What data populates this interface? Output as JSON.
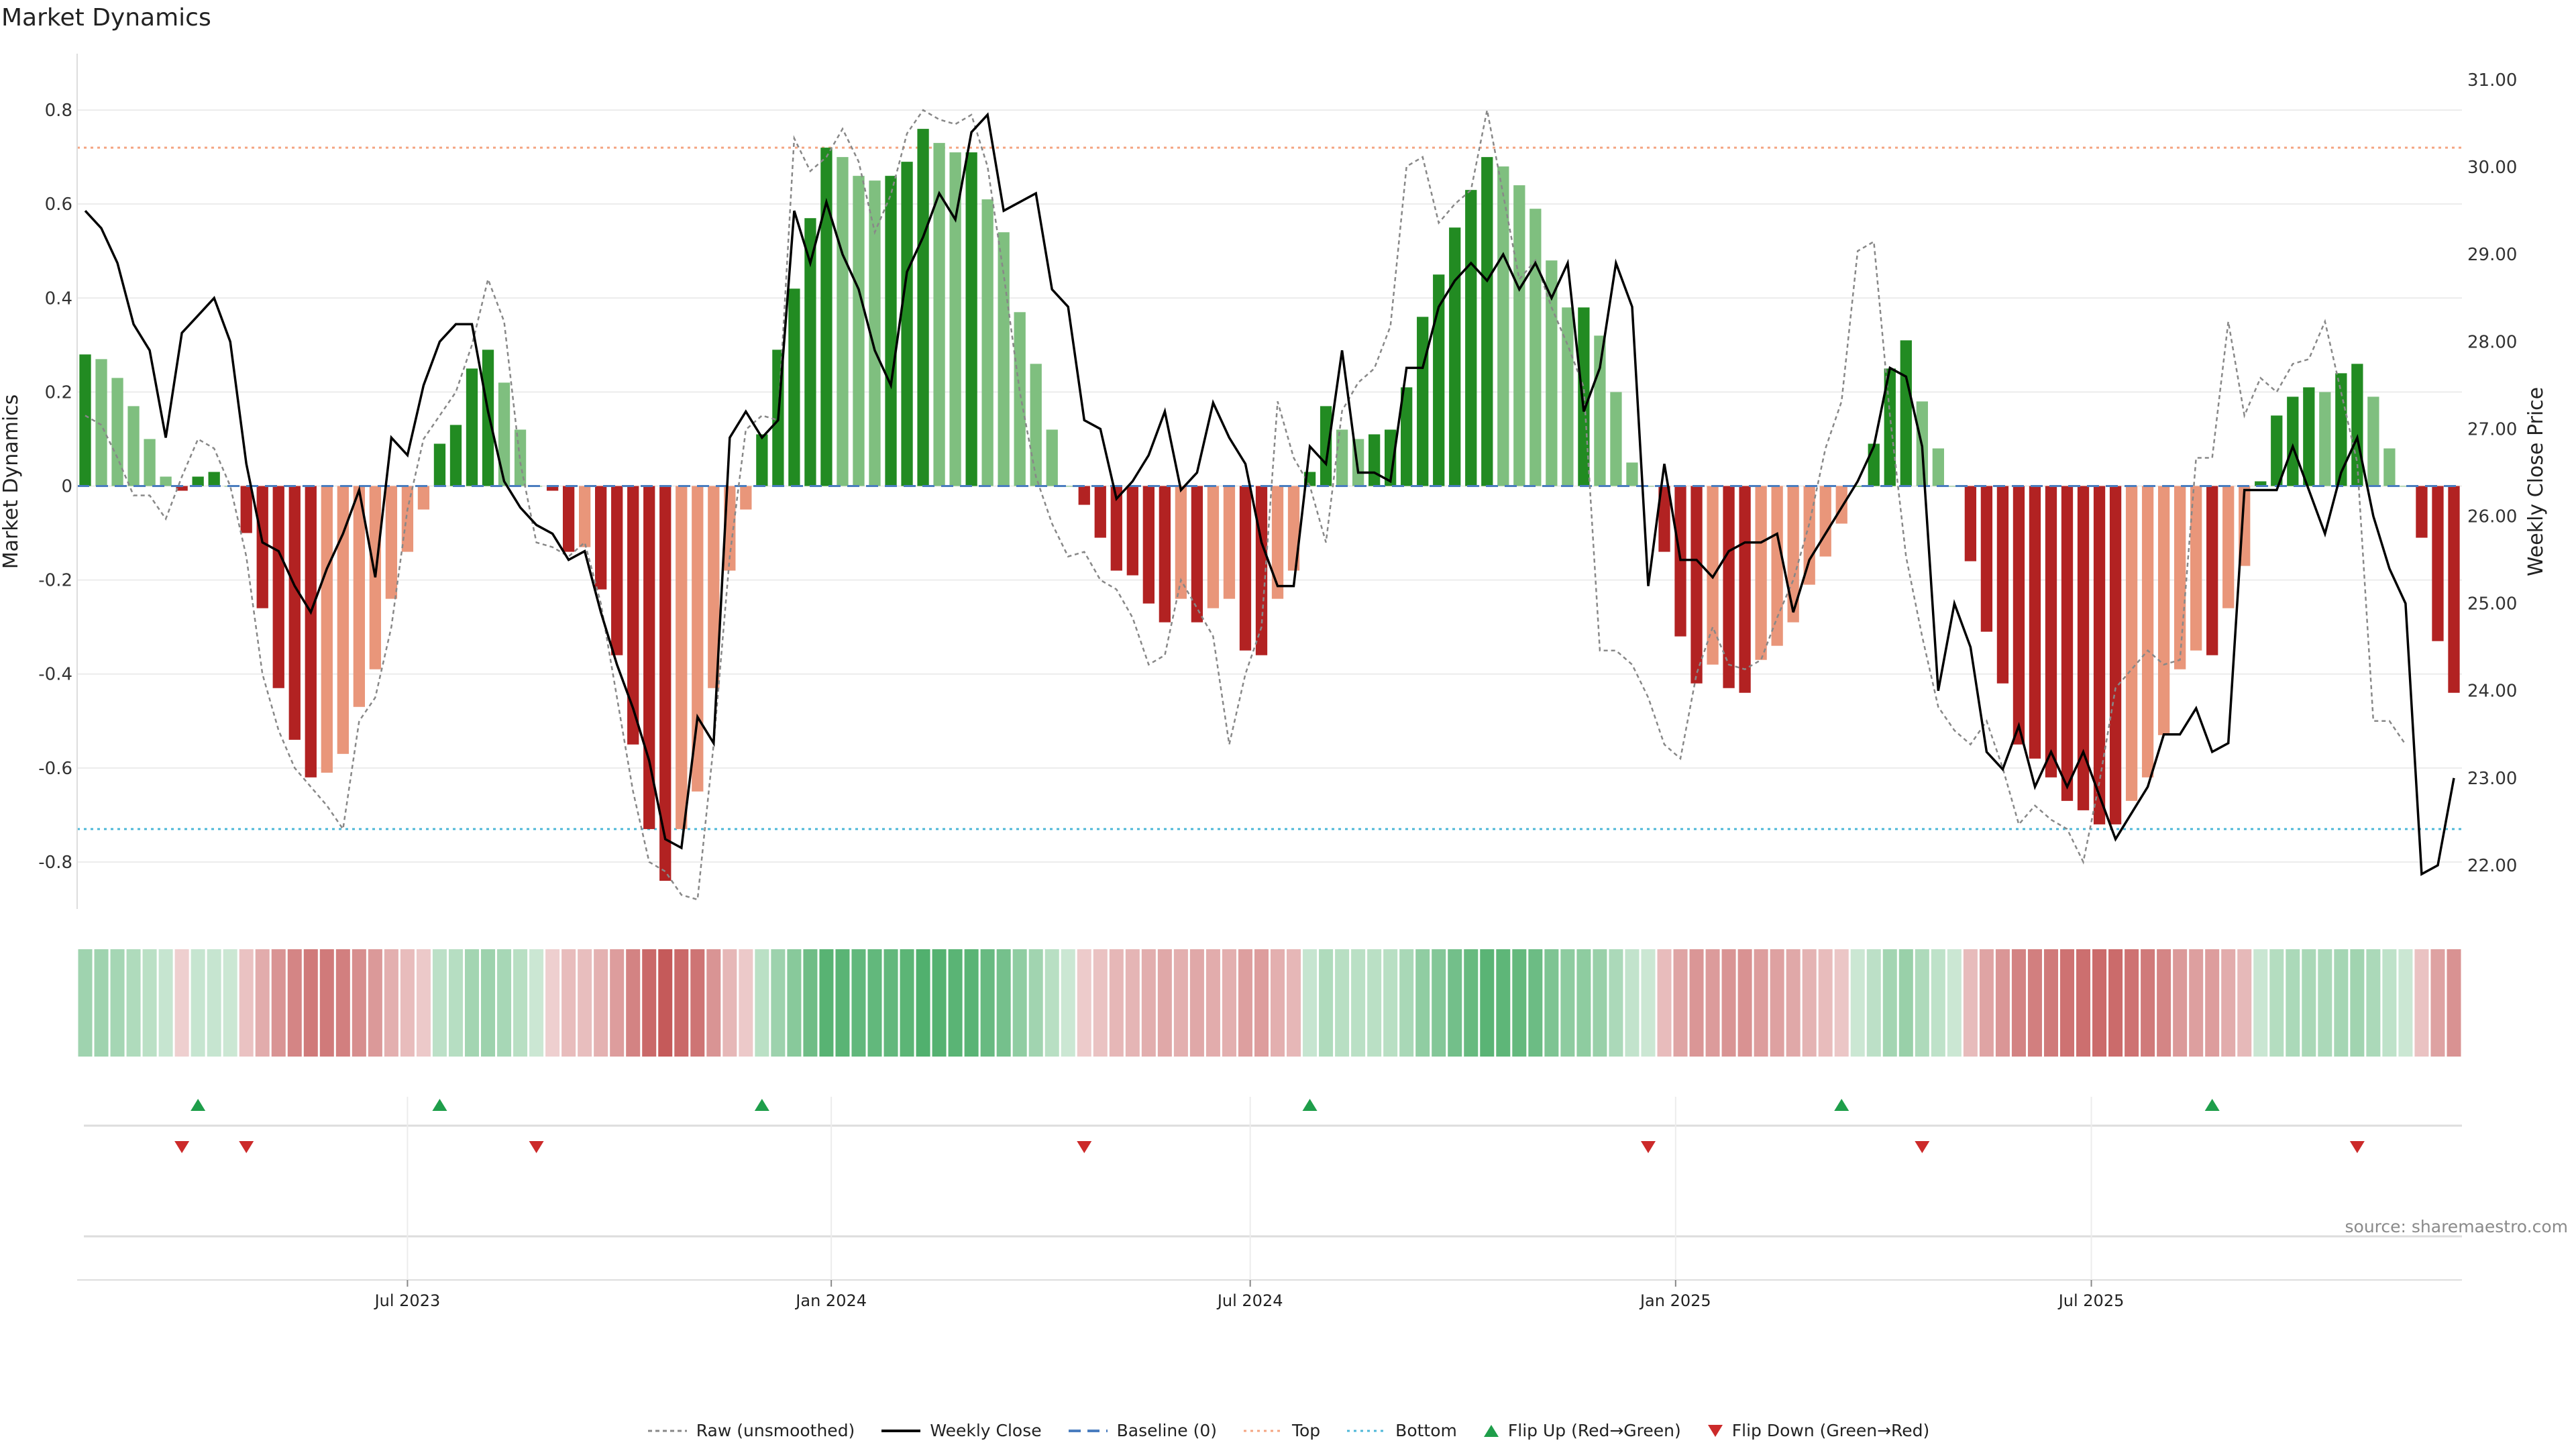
{
  "title": "Market Dynamics",
  "source": "source: sharemaestro.com",
  "colors": {
    "strong_green": "#228b22",
    "light_green": "#7fbf7f",
    "strong_red": "#b22222",
    "light_red": "#e9967a",
    "top_line": "#f4a582",
    "bottom_line": "#4fb8d8",
    "baseline": "#4a7dbf",
    "close_line": "#000000",
    "raw_line": "#888888",
    "flip_up": "#1e9e4a",
    "flip_down": "#cc2a2a"
  },
  "legend": [
    {
      "key": "raw",
      "label": "Raw (unsmoothed)"
    },
    {
      "key": "close",
      "label": "Weekly Close"
    },
    {
      "key": "baseline",
      "label": "Baseline (0)"
    },
    {
      "key": "top",
      "label": "Top"
    },
    {
      "key": "bottom",
      "label": "Bottom"
    },
    {
      "key": "flip_up",
      "label": "Flip Up (Red→Green)"
    },
    {
      "key": "flip_down",
      "label": "Flip Down (Green→Red)"
    }
  ],
  "chart_data": {
    "type": "bar",
    "title": "Market Dynamics",
    "ylabel": "Market Dynamics",
    "y2label": "Weekly Close Price",
    "ylim": [
      -0.9,
      0.92
    ],
    "y2lim": [
      21.5,
      31.3
    ],
    "yticks": [
      "0.8",
      "0.6",
      "0.4",
      "0.2",
      "0",
      "-0.2",
      "-0.4",
      "-0.6",
      "-0.8"
    ],
    "y2ticks": [
      "31.00",
      "30.00",
      "29.00",
      "28.00",
      "27.00",
      "26.00",
      "25.00",
      "24.00",
      "23.00",
      "22.00"
    ],
    "xticks": [
      {
        "label": "Jul 2023",
        "week": 20.5
      },
      {
        "label": "Jan 2024",
        "week": 46.8
      },
      {
        "label": "Jul 2024",
        "week": 72.8
      },
      {
        "label": "Jan 2025",
        "week": 99.2
      },
      {
        "label": "Jul 2025",
        "week": 125
      }
    ],
    "top_threshold": 0.72,
    "bottom_threshold": -0.73,
    "grid": true,
    "legend_position": "bottom-center",
    "series": [
      {
        "name": "Market Dynamics (smoothed)",
        "kind": "bar",
        "values": [
          0.28,
          0.27,
          0.23,
          0.17,
          0.1,
          0.02,
          -0.01,
          0.02,
          0.03,
          0,
          -0.1,
          -0.26,
          -0.43,
          -0.54,
          -0.62,
          -0.61,
          -0.57,
          -0.47,
          -0.39,
          -0.24,
          -0.14,
          -0.05,
          0.09,
          0.13,
          0.25,
          0.29,
          0.22,
          0.12,
          0,
          -0.01,
          -0.14,
          -0.13,
          -0.22,
          -0.36,
          -0.55,
          -0.73,
          -0.84,
          -0.73,
          -0.65,
          -0.43,
          -0.18,
          -0.05,
          0.11,
          0.29,
          0.42,
          0.57,
          0.72,
          0.7,
          0.66,
          0.65,
          0.66,
          0.69,
          0.76,
          0.73,
          0.71,
          0.71,
          0.61,
          0.54,
          0.37,
          0.26,
          0.12,
          0,
          -0.04,
          -0.11,
          -0.18,
          -0.19,
          -0.25,
          -0.29,
          -0.24,
          -0.29,
          -0.26,
          -0.24,
          -0.35,
          -0.36,
          -0.24,
          -0.18,
          0.03,
          0.17,
          0.12,
          0.1,
          0.11,
          0.12,
          0.21,
          0.36,
          0.45,
          0.55,
          0.63,
          0.7,
          0.68,
          0.64,
          0.59,
          0.48,
          0.38,
          0.38,
          0.32,
          0.2,
          0.05,
          0,
          -0.14,
          -0.32,
          -0.42,
          -0.38,
          -0.43,
          -0.44,
          -0.37,
          -0.34,
          -0.29,
          -0.21,
          -0.15,
          -0.08,
          0,
          0.09,
          0.25,
          0.31,
          0.18,
          0.08,
          0,
          -0.16,
          -0.31,
          -0.42,
          -0.55,
          -0.58,
          -0.62,
          -0.67,
          -0.69,
          -0.72,
          -0.72,
          -0.67,
          -0.62,
          -0.53,
          -0.39,
          -0.35,
          -0.36,
          -0.26,
          -0.17,
          0.01,
          0.15,
          0.19,
          0.21,
          0.2,
          0.24,
          0.26,
          0.19,
          0.08,
          0,
          -0.11,
          -0.33,
          -0.44
        ]
      },
      {
        "name": "Raw (unsmoothed)",
        "kind": "line",
        "values": [
          0.15,
          0.13,
          0.06,
          -0.02,
          -0.02,
          -0.07,
          0.02,
          0.1,
          0.08,
          0,
          -0.15,
          -0.4,
          -0.52,
          -0.6,
          -0.64,
          -0.68,
          -0.73,
          -0.5,
          -0.45,
          -0.3,
          -0.05,
          0.1,
          0.15,
          0.2,
          0.3,
          0.44,
          0.35,
          0.05,
          -0.12,
          -0.13,
          -0.15,
          -0.12,
          -0.25,
          -0.45,
          -0.65,
          -0.8,
          -0.82,
          -0.87,
          -0.88,
          -0.55,
          -0.15,
          0.12,
          0.15,
          0.14,
          0.74,
          0.67,
          0.7,
          0.76,
          0.69,
          0.54,
          0.62,
          0.75,
          0.8,
          0.78,
          0.77,
          0.79,
          0.68,
          0.45,
          0.2,
          0.02,
          -0.08,
          -0.15,
          -0.14,
          -0.2,
          -0.22,
          -0.28,
          -0.38,
          -0.36,
          -0.2,
          -0.26,
          -0.32,
          -0.55,
          -0.4,
          -0.3,
          0.18,
          0.06,
          0,
          -0.12,
          0.16,
          0.22,
          0.25,
          0.34,
          0.68,
          0.7,
          0.56,
          0.6,
          0.63,
          0.8,
          0.62,
          0.44,
          0.48,
          0.38,
          0.3,
          0.21,
          -0.35,
          -0.35,
          -0.38,
          -0.45,
          -0.55,
          -0.58,
          -0.4,
          -0.3,
          -0.38,
          -0.39,
          -0.37,
          -0.28,
          -0.2,
          -0.08,
          0.08,
          0.18,
          0.5,
          0.52,
          0.15,
          -0.15,
          -0.32,
          -0.47,
          -0.52,
          -0.55,
          -0.5,
          -0.6,
          -0.72,
          -0.68,
          -0.71,
          -0.73,
          -0.8,
          -0.63,
          -0.43,
          -0.39,
          -0.35,
          -0.38,
          -0.37,
          0.06,
          0.06,
          0.35,
          0.15,
          0.23,
          0.2,
          0.26,
          0.27,
          0.35,
          0.2,
          0.05,
          -0.5,
          -0.5,
          -0.55
        ]
      },
      {
        "name": "Weekly Close",
        "kind": "line",
        "axis": "right",
        "values": [
          29.5,
          29.3,
          28.9,
          28.2,
          27.9,
          26.9,
          28.1,
          28.3,
          28.5,
          28.0,
          26.6,
          25.7,
          25.6,
          25.2,
          24.9,
          25.4,
          25.8,
          26.3,
          25.3,
          26.9,
          26.7,
          27.5,
          28.0,
          28.2,
          28.2,
          27.2,
          26.4,
          26.1,
          25.9,
          25.8,
          25.5,
          25.6,
          24.9,
          24.3,
          23.8,
          23.2,
          22.3,
          22.2,
          23.7,
          23.4,
          26.9,
          27.2,
          26.9,
          27.1,
          29.5,
          28.9,
          29.6,
          29.0,
          28.6,
          27.9,
          27.5,
          28.8,
          29.2,
          29.7,
          29.4,
          30.4,
          30.6,
          29.5,
          29.6,
          29.7,
          28.6,
          28.4,
          27.1,
          27.0,
          26.2,
          26.4,
          26.7,
          27.2,
          26.3,
          26.5,
          27.3,
          26.9,
          26.6,
          25.7,
          25.2,
          25.2,
          26.8,
          26.6,
          27.9,
          26.5,
          26.5,
          26.4,
          27.7,
          27.7,
          28.4,
          28.7,
          28.9,
          28.7,
          29.0,
          28.6,
          28.9,
          28.5,
          28.9,
          27.2,
          27.7,
          28.9,
          28.4,
          25.2,
          26.6,
          25.5,
          25.5,
          25.3,
          25.6,
          25.7,
          25.7,
          25.8,
          24.9,
          25.5,
          25.8,
          26.1,
          26.4,
          26.8,
          27.7,
          27.6,
          26.8,
          24.0,
          25.0,
          24.5,
          23.3,
          23.1,
          23.6,
          22.9,
          23.3,
          22.9,
          23.3,
          22.8,
          22.3,
          22.6,
          22.9,
          23.5,
          23.5,
          23.8,
          23.3,
          23.4,
          26.3,
          26.3,
          26.3,
          26.8,
          26.3,
          25.8,
          26.5,
          26.9,
          26.0,
          25.4,
          25.0,
          21.9,
          22.0,
          23.0
        ]
      }
    ],
    "flip_up_weeks": [
      7,
      22,
      42,
      76,
      109,
      132
    ],
    "flip_down_weeks": [
      6,
      10,
      28,
      62,
      97,
      114,
      141
    ]
  }
}
